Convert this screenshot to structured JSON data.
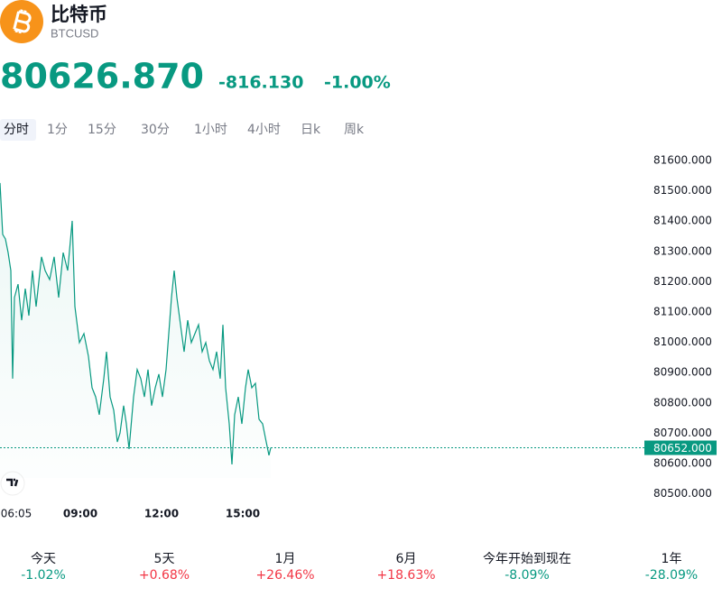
{
  "header": {
    "name": "比特币",
    "symbol": "BTCUSD"
  },
  "quote": {
    "price": "80626.870",
    "change": "-816.130",
    "change_percent": "-1.00%",
    "color": "#089981"
  },
  "tabs": {
    "items": [
      "分时",
      "1分",
      "15分",
      "30分",
      "1小时",
      "4小时",
      "日k",
      "周k"
    ],
    "selected": 0
  },
  "chart_data": {
    "type": "line",
    "x": [
      "06:02",
      "06:08",
      "06:14",
      "06:20",
      "06:26",
      "06:30",
      "06:34",
      "06:42",
      "06:50",
      "06:58",
      "07:06",
      "07:14",
      "07:22",
      "07:34",
      "07:42",
      "07:52",
      "08:02",
      "08:12",
      "08:22",
      "08:32",
      "08:42",
      "08:48",
      "08:58",
      "09:08",
      "09:18",
      "09:26",
      "09:34",
      "09:42",
      "09:52",
      "09:58",
      "10:06",
      "10:14",
      "10:22",
      "10:28",
      "10:36",
      "10:42",
      "10:48",
      "10:58",
      "11:06",
      "11:14",
      "11:22",
      "11:30",
      "11:38",
      "11:46",
      "11:54",
      "12:02",
      "12:10",
      "12:16",
      "12:22",
      "12:28",
      "12:34",
      "12:42",
      "12:50",
      "12:58",
      "13:06",
      "13:14",
      "13:22",
      "13:30",
      "13:38",
      "13:46",
      "13:54",
      "14:02",
      "14:10",
      "14:16",
      "14:22",
      "14:30",
      "14:36",
      "14:42",
      "14:50",
      "14:58",
      "15:06",
      "15:12",
      "15:20",
      "15:28",
      "15:36",
      "15:44",
      "15:52",
      "15:58",
      "16:02"
    ],
    "values": [
      81526,
      81356,
      81341,
      81296,
      81237,
      80880,
      81148,
      81192,
      81073,
      81177,
      81088,
      81237,
      81118,
      81282,
      81237,
      81207,
      81282,
      81148,
      81296,
      81237,
      81401,
      81118,
      80999,
      81029,
      80954,
      80850,
      80820,
      80761,
      80880,
      80969,
      80820,
      80776,
      80671,
      80701,
      80791,
      80731,
      80648,
      80820,
      80910,
      80880,
      80820,
      80910,
      80791,
      80850,
      80895,
      80820,
      80910,
      81029,
      81148,
      81237,
      81148,
      81058,
      80969,
      81073,
      80999,
      81029,
      81058,
      80969,
      80999,
      80939,
      80910,
      80969,
      80880,
      81058,
      80850,
      80731,
      80597,
      80761,
      80820,
      80731,
      80850,
      80910,
      80850,
      80865,
      80746,
      80731,
      80671,
      80627,
      80652
    ],
    "color": "#089981",
    "xlim": [
      "06:02",
      "16:02"
    ],
    "xticks": [
      "06:05",
      "09:00",
      "12:00",
      "15:00"
    ],
    "ylim": [
      80450,
      81650
    ],
    "yticks": [
      {
        "value": 80500,
        "label": "80500.000"
      },
      {
        "value": 80600,
        "label": "80600.000"
      },
      {
        "value": 80700,
        "label": "80700.000"
      },
      {
        "value": 80800,
        "label": "80800.000"
      },
      {
        "value": 80900,
        "label": "80900.000"
      },
      {
        "value": 81000,
        "label": "81000.000"
      },
      {
        "value": 81100,
        "label": "81100.000"
      },
      {
        "value": 81200,
        "label": "81200.000"
      },
      {
        "value": 81300,
        "label": "81300.000"
      },
      {
        "value": 81400,
        "label": "81400.000"
      },
      {
        "value": 81500,
        "label": "81500.000"
      },
      {
        "value": 81600,
        "label": "81600.000"
      }
    ],
    "last_price": {
      "value": 80652,
      "label": "80652.000"
    }
  },
  "periods": [
    {
      "label": "今天",
      "change": "-1.02%",
      "color": "#089981"
    },
    {
      "label": "5天",
      "change": "+0.68%",
      "color": "#f23645"
    },
    {
      "label": "1月",
      "change": "+26.46%",
      "color": "#f23645"
    },
    {
      "label": "6月",
      "change": "+18.63%",
      "color": "#f23645"
    },
    {
      "label": "今年开始到现在",
      "change": "-8.09%",
      "color": "#089981"
    },
    {
      "label": "1年",
      "change": "-28.09%",
      "color": "#089981"
    }
  ]
}
